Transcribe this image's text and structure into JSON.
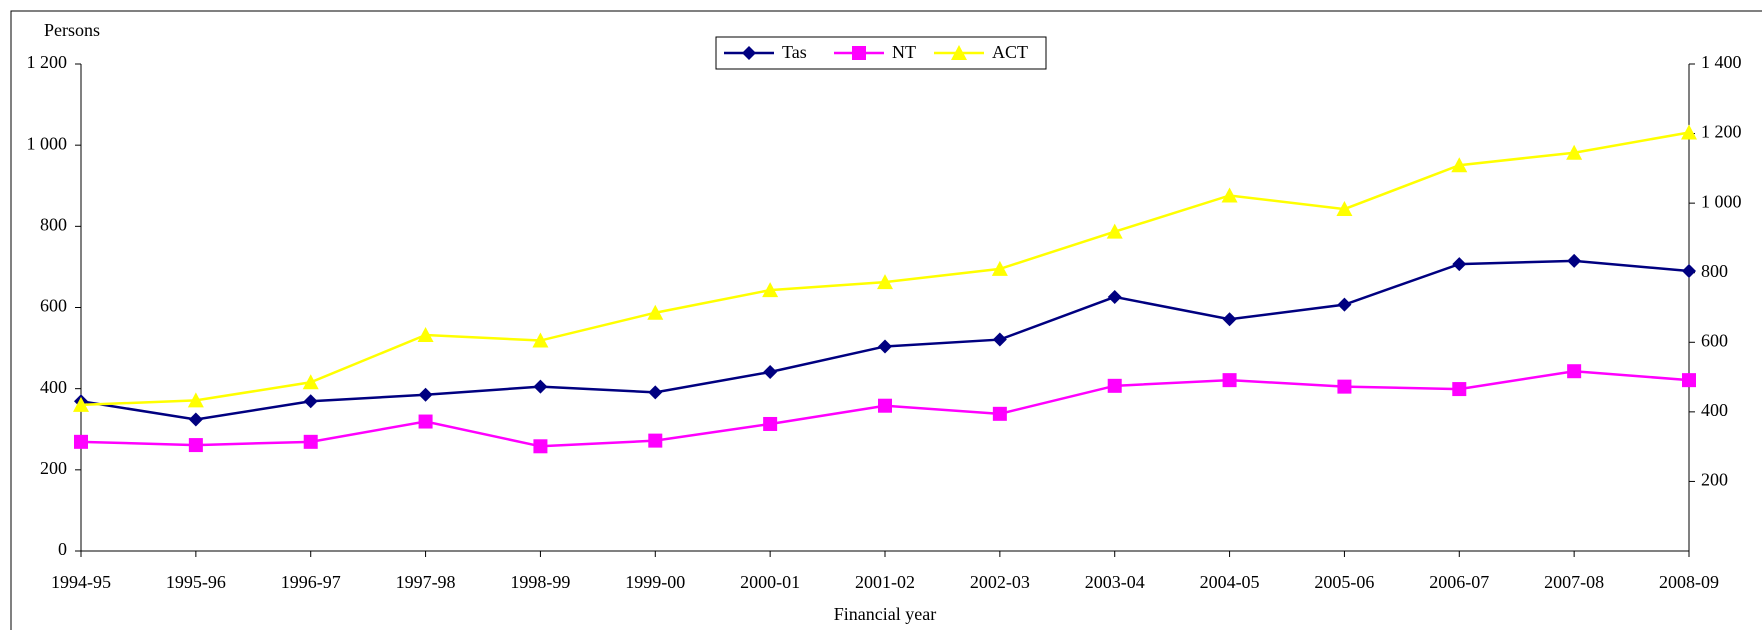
{
  "chart_data": {
    "type": "line",
    "y_label": "Persons",
    "x_label": "Financial year",
    "categories": [
      "1994-95",
      "1995-96",
      "1996-97",
      "1997-98",
      "1998-99",
      "1999-00",
      "2000-01",
      "2001-02",
      "2002-03",
      "2003-04",
      "2004-05",
      "2005-06",
      "2006-07",
      "2007-08",
      "2008-09"
    ],
    "series": [
      {
        "name": "Tas",
        "color": "#000080",
        "marker": "diamond",
        "values": [
          369,
          324,
          369,
          385,
          405,
          391,
          441,
          504,
          521,
          626,
          571,
          607,
          707,
          715,
          690
        ]
      },
      {
        "name": "NT",
        "color": "#ff00ff",
        "marker": "square",
        "values": [
          269,
          261,
          269,
          319,
          258,
          272,
          313,
          358,
          338,
          407,
          421,
          405,
          399,
          443,
          421
        ]
      },
      {
        "name": "ACT",
        "color": "#ffff00",
        "marker": "triangle",
        "axis": "y2",
        "values": [
          420,
          433,
          485,
          621,
          605,
          685,
          750,
          773,
          811,
          918,
          1022,
          983,
          1109,
          1145,
          1203
        ]
      }
    ],
    "ylim": [
      0,
      1200
    ],
    "yticks": [
      0,
      200,
      400,
      600,
      800,
      {
        "value": 1000,
        "label": "1 000"
      },
      {
        "value": 1200,
        "label": "1 200"
      }
    ],
    "y2lim": [
      0,
      1400
    ],
    "y2ticks": [
      200,
      400,
      600,
      800,
      {
        "value": 1000,
        "label": "1 000"
      },
      {
        "value": 1200,
        "label": "1 200"
      },
      {
        "value": 1400,
        "label": "1 400"
      }
    ],
    "legend": "top"
  }
}
